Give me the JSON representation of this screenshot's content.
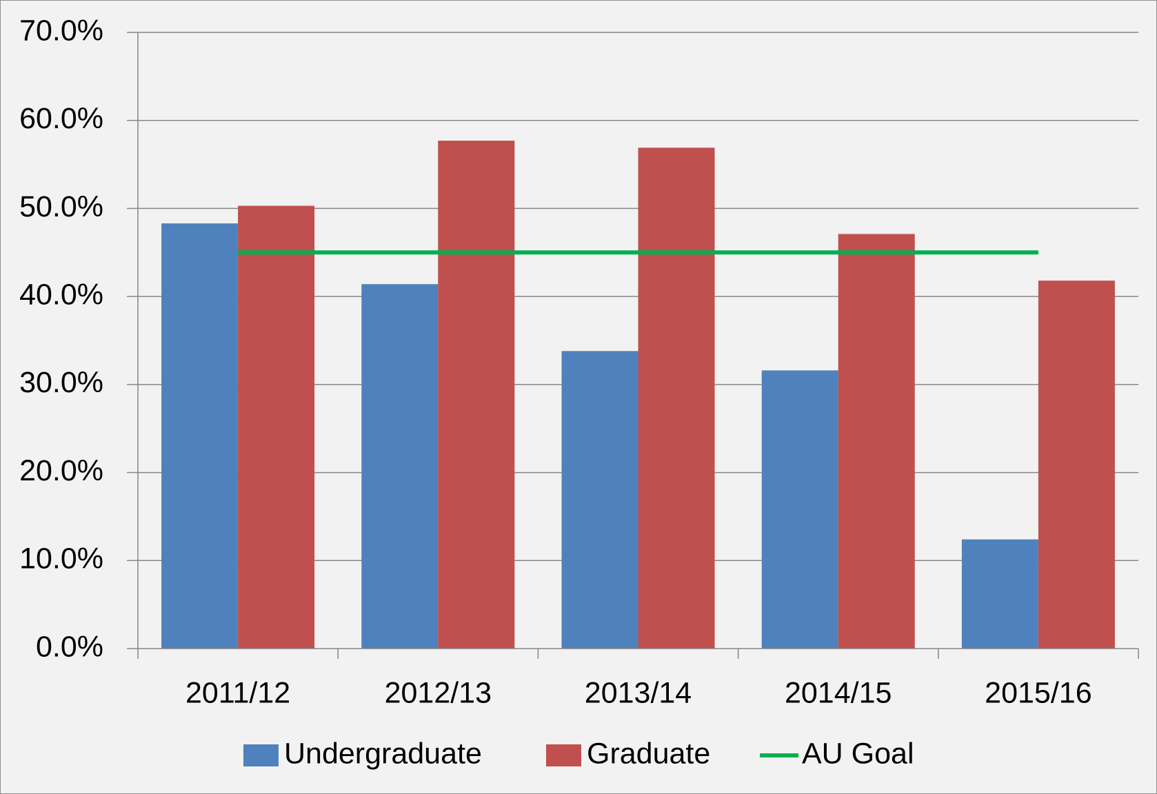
{
  "chart_data": {
    "type": "bar",
    "categories": [
      "2011/12",
      "2012/13",
      "2013/14",
      "2014/15",
      "2015/16"
    ],
    "series": [
      {
        "name": "Undergraduate",
        "color": "#4f81bd",
        "values": [
          48.3,
          41.4,
          33.8,
          31.6,
          12.4
        ]
      },
      {
        "name": "Graduate",
        "color": "#c0504d",
        "values": [
          50.3,
          57.7,
          56.9,
          47.1,
          41.8
        ]
      },
      {
        "name": "AU Goal",
        "color": "#00b050",
        "type": "line",
        "values": [
          45,
          45,
          45,
          45,
          45
        ]
      }
    ],
    "ylim": [
      0,
      70
    ],
    "yticks": [
      {
        "value": 0,
        "label": "0.0%"
      },
      {
        "value": 10,
        "label": "10.0%"
      },
      {
        "value": 20,
        "label": "20.0%"
      },
      {
        "value": 30,
        "label": "30.0%"
      },
      {
        "value": 40,
        "label": "40.0%"
      },
      {
        "value": 50,
        "label": "50.0%"
      },
      {
        "value": 60,
        "label": "60.0%"
      },
      {
        "value": 70,
        "label": "70.0%"
      }
    ],
    "grid": true,
    "legend": "bottom"
  }
}
